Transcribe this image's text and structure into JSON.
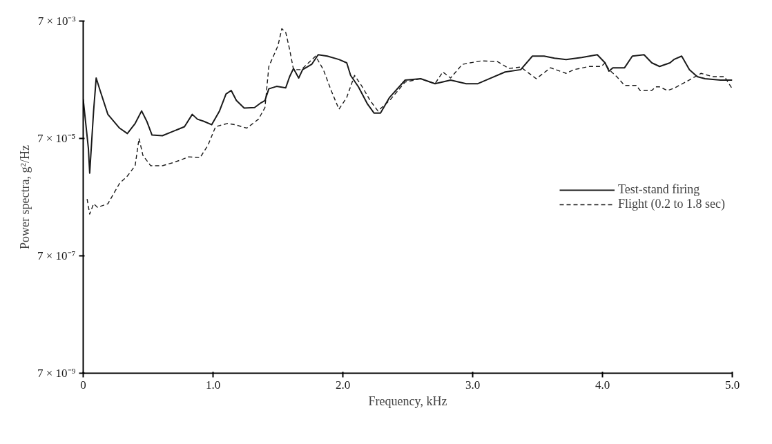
{
  "chart_data": {
    "type": "line",
    "xlabel": "Frequency, kHz",
    "ylabel": "Power spectra, g²/Hz",
    "log": "y",
    "grid": false,
    "legend": "right",
    "marker": "none",
    "xlim": [
      0,
      5.0
    ],
    "xticks": [
      {
        "value": 0,
        "label": "0"
      },
      {
        "value": 1,
        "label": "1.0"
      },
      {
        "value": 2,
        "label": "2.0"
      },
      {
        "value": 3,
        "label": "3.0"
      },
      {
        "value": 4,
        "label": "4.0"
      },
      {
        "value": 5,
        "label": "5.0"
      }
    ],
    "ylim": [
      7e-09,
      0.007
    ],
    "yticks": [
      {
        "value": 7e-09,
        "label": "7 × 10⁻⁹"
      },
      {
        "value": 7e-07,
        "label": "7 × 10⁻⁷"
      },
      {
        "value": 7e-05,
        "label": "7 × 10⁻⁵"
      },
      {
        "value": 0.007,
        "label": "7 × 10⁻³"
      }
    ],
    "series": [
      {
        "name": "Test-stand firing",
        "color": "#1a1a1a",
        "line_style": "solid",
        "x": [
          0,
          0.04,
          0.05,
          0.08,
          0.1,
          0.13,
          0.19,
          0.28,
          0.34,
          0.4,
          0.45,
          0.49,
          0.53,
          0.61,
          0.69,
          0.78,
          0.84,
          0.88,
          0.93,
          0.99,
          1.05,
          1.1,
          1.14,
          1.18,
          1.24,
          1.32,
          1.37,
          1.4,
          1.43,
          1.49,
          1.56,
          1.59,
          1.62,
          1.66,
          1.69,
          1.76,
          1.81,
          1.88,
          1.97,
          2.03,
          2.06,
          2.12,
          2.19,
          2.24,
          2.29,
          2.36,
          2.48,
          2.6,
          2.71,
          2.83,
          2.95,
          3.04,
          3.13,
          3.25,
          3.37,
          3.46,
          3.55,
          3.63,
          3.72,
          3.84,
          3.96,
          4.02,
          4.05,
          4.08,
          4.17,
          4.23,
          4.32,
          4.38,
          4.44,
          4.52,
          4.55,
          4.61,
          4.67,
          4.73,
          4.79,
          4.91,
          5.0
        ],
        "values": [
          0.000325,
          4.7e-05,
          1.8e-05,
          0.000206,
          0.00075,
          0.00046,
          0.00018,
          0.000105,
          8.5e-05,
          0.000126,
          0.000206,
          0.000137,
          8e-05,
          7.8e-05,
          9.2e-05,
          0.000111,
          0.00018,
          0.000149,
          0.000137,
          0.00012,
          0.000206,
          0.0004,
          0.00046,
          0.00031,
          0.00023,
          0.000235,
          0.000284,
          0.00031,
          0.00049,
          0.00054,
          0.00051,
          0.00079,
          0.00109,
          0.00075,
          0.00104,
          0.00128,
          0.00187,
          0.00177,
          0.00155,
          0.00136,
          0.00083,
          0.00053,
          0.00027,
          0.00019,
          0.00019,
          0.00035,
          0.00069,
          0.00073,
          0.0006,
          0.00069,
          0.0006,
          0.0006,
          0.00073,
          0.00095,
          0.00104,
          0.00177,
          0.00177,
          0.00163,
          0.00155,
          0.00168,
          0.00187,
          0.00136,
          0.00098,
          0.00112,
          0.00112,
          0.00177,
          0.00187,
          0.00136,
          0.00118,
          0.00136,
          0.00155,
          0.00177,
          0.00104,
          0.00079,
          0.00073,
          0.00069,
          0.00069
        ]
      },
      {
        "name": "Flight (0.2 to 1.8 sec)",
        "color": "#1a1a1a",
        "line_style": "dashed",
        "x": [
          0.03,
          0.05,
          0.08,
          0.11,
          0.19,
          0.28,
          0.34,
          0.4,
          0.43,
          0.46,
          0.52,
          0.61,
          0.69,
          0.75,
          0.81,
          0.9,
          0.96,
          1.02,
          1.11,
          1.17,
          1.26,
          1.35,
          1.4,
          1.43,
          1.5,
          1.53,
          1.56,
          1.59,
          1.62,
          1.68,
          1.79,
          1.85,
          1.91,
          1.97,
          2.03,
          2.09,
          2.15,
          2.21,
          2.27,
          2.36,
          2.48,
          2.6,
          2.71,
          2.77,
          2.83,
          2.92,
          2.98,
          3.07,
          3.19,
          3.28,
          3.37,
          3.49,
          3.6,
          3.72,
          3.78,
          3.9,
          3.99,
          4.02,
          4.05,
          4.11,
          4.17,
          4.26,
          4.29,
          4.38,
          4.41,
          4.44,
          4.5,
          4.55,
          4.64,
          4.76,
          4.85,
          4.94,
          5.0
        ],
        "values": [
          6.5e-06,
          3.6e-06,
          5.4e-06,
          4.7e-06,
          5.4e-06,
          1.2e-05,
          1.6e-05,
          2.4e-05,
          7e-05,
          3.6e-05,
          2.4e-05,
          2.4e-05,
          2.7e-05,
          3e-05,
          3.4e-05,
          3.3e-05,
          5.3e-05,
          0.000111,
          0.000126,
          0.00012,
          0.000105,
          0.000149,
          0.000235,
          0.00118,
          0.00265,
          0.0052,
          0.0045,
          0.0023,
          0.00104,
          0.00104,
          0.00177,
          0.00104,
          0.00046,
          0.00022,
          0.00035,
          0.00083,
          0.00053,
          0.00031,
          0.000206,
          0.00031,
          0.00064,
          0.00073,
          0.0006,
          0.00095,
          0.00075,
          0.00128,
          0.00136,
          0.00147,
          0.00143,
          0.00109,
          0.00115,
          0.00073,
          0.00112,
          0.0009,
          0.00104,
          0.00118,
          0.00118,
          0.00136,
          0.00104,
          0.00079,
          0.00056,
          0.00056,
          0.00046,
          0.00046,
          0.00053,
          0.00053,
          0.00046,
          0.0005,
          0.00064,
          0.0009,
          0.00079,
          0.00079,
          0.00049
        ]
      }
    ]
  }
}
